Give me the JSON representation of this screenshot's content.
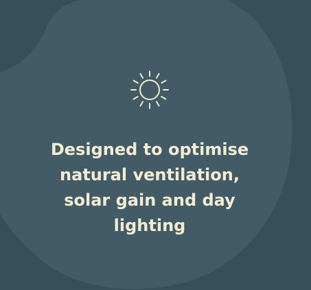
{
  "colors": {
    "background": "#364f5b",
    "blob": "#425b67",
    "text": "#f4ecd2",
    "icon": "#f4ecd2"
  },
  "feature": {
    "icon": "sun-icon",
    "headline": "Designed to optimise\nnatural ventilation,\nsolar gain and day\nlighting"
  }
}
